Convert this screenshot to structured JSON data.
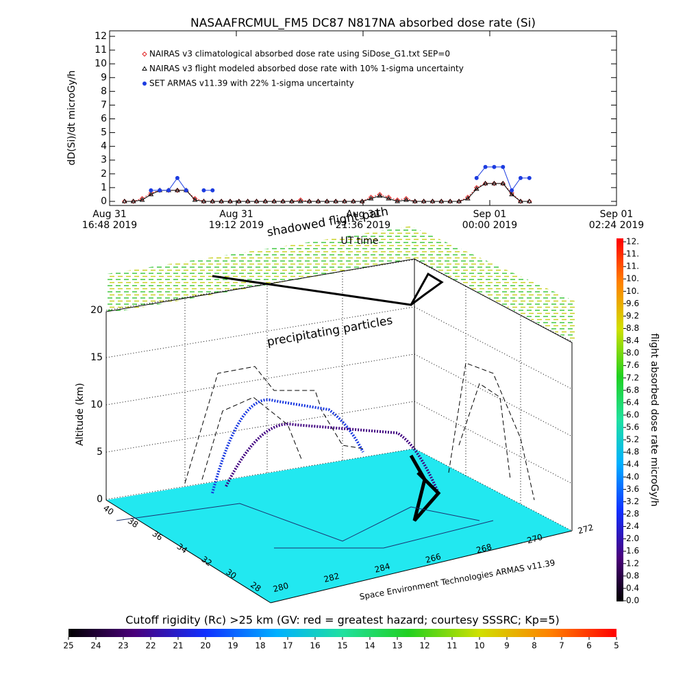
{
  "chart_data": [
    {
      "type": "line",
      "title": "NASAAFRCMUL_FM5 DC87 N817NA absorbed dose rate (Si)",
      "ylabel": "dD(Si)/dt microGy/h",
      "xlabel": "UT time",
      "ylim": [
        -0.3,
        12.4
      ],
      "yticks": [
        0,
        1,
        2,
        3,
        4,
        5,
        6,
        7,
        8,
        9,
        10,
        11,
        12
      ],
      "xlim": [
        "2019-08-31T16:48",
        "2019-09-01T02:24"
      ],
      "xticks": [
        {
          "value": "2019-08-31T16:48",
          "label": [
            "Aug 31",
            "16:48 2019"
          ]
        },
        {
          "value": "2019-08-31T19:12",
          "label": [
            "Aug 31",
            "19:12 2019"
          ]
        },
        {
          "value": "2019-08-31T21:36",
          "label": [
            "Aug 31",
            "21:36 2019"
          ]
        },
        {
          "value": "2019-09-01T00:00",
          "label": [
            "Sep 01",
            "00:00 2019"
          ]
        },
        {
          "value": "2019-09-01T02:24",
          "label": [
            "Sep 01",
            "02:24 2019"
          ]
        }
      ],
      "x": [
        "2019-08-31T17:05",
        "2019-08-31T17:15",
        "2019-08-31T17:25",
        "2019-08-31T17:35",
        "2019-08-31T17:45",
        "2019-08-31T17:55",
        "2019-08-31T18:05",
        "2019-08-31T18:15",
        "2019-08-31T18:25",
        "2019-08-31T18:35",
        "2019-08-31T18:45",
        "2019-08-31T18:55",
        "2019-08-31T19:05",
        "2019-08-31T19:15",
        "2019-08-31T19:25",
        "2019-08-31T19:35",
        "2019-08-31T19:45",
        "2019-08-31T19:55",
        "2019-08-31T20:05",
        "2019-08-31T20:15",
        "2019-08-31T20:25",
        "2019-08-31T20:35",
        "2019-08-31T20:45",
        "2019-08-31T20:55",
        "2019-08-31T21:05",
        "2019-08-31T21:15",
        "2019-08-31T21:25",
        "2019-08-31T21:35",
        "2019-08-31T21:45",
        "2019-08-31T21:55",
        "2019-08-31T22:05",
        "2019-08-31T22:15",
        "2019-08-31T22:25",
        "2019-08-31T22:35",
        "2019-08-31T22:45",
        "2019-08-31T22:55",
        "2019-08-31T23:05",
        "2019-08-31T23:15",
        "2019-08-31T23:25",
        "2019-08-31T23:35",
        "2019-08-31T23:45",
        "2019-08-31T23:55",
        "2019-09-01T00:05",
        "2019-09-01T00:15",
        "2019-09-01T00:25",
        "2019-09-01T00:35",
        "2019-09-01T00:45"
      ],
      "series": [
        {
          "name": "NAIRAS v3 climatological absorbed dose rate using SiDose_G1.txt SEP=0",
          "color": "#e02020",
          "marker": "diamond",
          "values": [
            0,
            0,
            0.2,
            0.6,
            0.8,
            0.8,
            0.8,
            0.8,
            0.2,
            0,
            0,
            0,
            0,
            0,
            0,
            0,
            0,
            0,
            0,
            0,
            0.1,
            0,
            0,
            0,
            0,
            0,
            0,
            0,
            0.3,
            0.5,
            0.3,
            0.1,
            0.2,
            0,
            0,
            0,
            0,
            0,
            0,
            0.3,
            1.0,
            1.3,
            1.3,
            1.3,
            0.6,
            0,
            0
          ]
        },
        {
          "name": "NAIRAS v3 flight modeled absorbed dose rate with 10% 1-sigma uncertainty",
          "color": "#000000",
          "marker": "triangle",
          "values": [
            0,
            0,
            0.1,
            0.5,
            0.8,
            0.8,
            0.8,
            0.8,
            0.1,
            0,
            0,
            0,
            0,
            0,
            0,
            0,
            0,
            0,
            0,
            0,
            0,
            0,
            0,
            0,
            0,
            0,
            0,
            0,
            0.2,
            0.4,
            0.2,
            0,
            0.1,
            0,
            0,
            0,
            0,
            0,
            0,
            0.2,
            0.9,
            1.3,
            1.3,
            1.3,
            0.5,
            0,
            0
          ]
        },
        {
          "name": "SET ARMAS v11.39 with 22% 1-sigma uncertainty",
          "color": "#1c3ce0",
          "marker": "circle",
          "values": [
            null,
            null,
            null,
            0.8,
            0.8,
            0.8,
            1.7,
            0.8,
            null,
            0.8,
            0.8,
            null,
            null,
            null,
            null,
            null,
            null,
            null,
            null,
            null,
            null,
            null,
            null,
            null,
            null,
            null,
            null,
            null,
            null,
            null,
            null,
            null,
            null,
            null,
            null,
            null,
            null,
            null,
            null,
            null,
            1.7,
            2.5,
            2.5,
            2.5,
            0.8,
            1.7,
            1.7
          ]
        }
      ]
    },
    {
      "type": "surface3d",
      "zlabel": "Altitude (km)",
      "zlim": [
        0,
        20
      ],
      "zticks": [
        0,
        5,
        10,
        15,
        20
      ],
      "lat_ticks": [
        40,
        38,
        36,
        34,
        32,
        30,
        28
      ],
      "lon_ticks": [
        280,
        282,
        284,
        266,
        268,
        270,
        272
      ],
      "annotations": [
        "shadowed flight path",
        "precipitating particles",
        "Space Environment Technologies ARMAS v11.39"
      ],
      "dose_colorbar": {
        "label": "flight absorbed dose rate microGy/h",
        "lim": [
          0,
          11.6
        ],
        "ticks": [
          {
            "value": 0,
            "label": "0.0"
          },
          0.4,
          0.8,
          1.2,
          1.6,
          {
            "value": 2,
            "label": "2.0"
          },
          2.4,
          2.8,
          3.2,
          3.6,
          {
            "value": 4,
            "label": "4.0"
          },
          4.4,
          4.8,
          5.2,
          5.6,
          {
            "value": 6,
            "label": "6.0"
          },
          6.4,
          6.8,
          7.2,
          7.6,
          {
            "value": 8,
            "label": "8.0"
          },
          8.4,
          8.8,
          9.2,
          9.6,
          {
            "value": 10,
            "label": "10."
          },
          {
            "value": 10.4,
            "label": "10."
          },
          {
            "value": 10.8,
            "label": "11."
          },
          {
            "value": 11.2,
            "label": "11."
          },
          {
            "value": 11.6,
            "label": "12."
          }
        ]
      },
      "cutoff_colorbar": {
        "label": "Cutoff rigidity (Rc) >25 km (GV: red = greatest hazard; courtesy SSSRC; Kp=5)",
        "lim": [
          25,
          5
        ],
        "ticks": [
          25,
          24,
          23,
          22,
          21,
          20,
          19,
          18,
          17,
          16,
          15,
          14,
          13,
          12,
          11,
          10,
          9,
          8,
          7,
          6,
          5
        ]
      }
    }
  ]
}
